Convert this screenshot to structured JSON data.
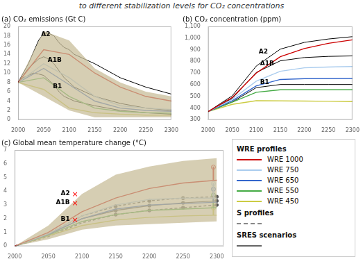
{
  "title": "to different stabilization levels for CO₂ concentrations",
  "chart_data": [
    {
      "type": "line",
      "title": "(a) CO₂ emissions (Gt C)",
      "xlim": [
        2000,
        2300
      ],
      "xticks": [
        2000,
        2050,
        2100,
        2150,
        2200,
        2250,
        2300
      ],
      "ylim": [
        0,
        20
      ],
      "yticks": [
        0,
        2,
        4,
        6,
        8,
        10,
        12,
        14,
        16,
        18,
        20
      ],
      "grid": false,
      "band": {
        "x": [
          2000,
          2050,
          2100,
          2150,
          2200,
          2250,
          2300
        ],
        "lower": [
          8.0,
          5.0,
          2.0,
          0.5,
          0.5,
          0.5,
          0.5
        ],
        "upper": [
          8.0,
          19.0,
          17.0,
          11.0,
          8.0,
          6.0,
          5.0
        ],
        "color": "#c8be9a"
      },
      "series": [
        {
          "name": "WRE 1000",
          "color": "#cc0000",
          "x": [
            2000,
            2050,
            2100,
            2150,
            2200,
            2250,
            2300
          ],
          "values": [
            8.0,
            15.0,
            14.0,
            10.0,
            7.0,
            5.0,
            4.0
          ]
        },
        {
          "name": "WRE 750",
          "color": "#aaccee",
          "x": [
            2000,
            2050,
            2100,
            2150,
            2200,
            2250,
            2300
          ],
          "values": [
            8.0,
            12.0,
            9.0,
            5.0,
            3.0,
            2.5,
            2.2
          ]
        },
        {
          "name": "WRE 650",
          "color": "#3366cc",
          "x": [
            2000,
            2050,
            2100,
            2150,
            2200,
            2250,
            2300
          ],
          "values": [
            8.0,
            11.0,
            7.5,
            4.0,
            2.5,
            2.0,
            1.8
          ]
        },
        {
          "name": "WRE 550",
          "color": "#44aa44",
          "x": [
            2000,
            2050,
            2100,
            2150,
            2200,
            2250,
            2300
          ],
          "values": [
            8.0,
            9.0,
            5.0,
            2.5,
            1.8,
            1.5,
            1.4
          ]
        },
        {
          "name": "WRE 450",
          "color": "#cccc44",
          "x": [
            2000,
            2050,
            2100,
            2150,
            2200,
            2250,
            2300
          ],
          "values": [
            8.0,
            6.5,
            2.5,
            1.5,
            1.2,
            1.0,
            1.0
          ]
        },
        {
          "name": "A2",
          "color": "#000000",
          "x": [
            2000,
            2010,
            2020,
            2030,
            2040,
            2050,
            2060,
            2070,
            2080,
            2090,
            2100,
            2110,
            2150,
            2200,
            2250,
            2300
          ],
          "values": [
            8.0,
            10.0,
            12.0,
            14.5,
            17.0,
            18.5,
            18.5,
            18.0,
            16.5,
            15.5,
            15.0,
            14.0,
            12.0,
            9.0,
            7.0,
            5.5
          ]
        },
        {
          "name": "A1B",
          "color": "#000000",
          "x": [
            2000,
            2010,
            2020,
            2030,
            2040,
            2050,
            2060,
            2070,
            2080,
            2090,
            2100,
            2110,
            2150,
            2200,
            2250,
            2300
          ],
          "values": [
            8.0,
            9.5,
            11.0,
            12.0,
            13.0,
            13.5,
            13.0,
            12.0,
            10.5,
            9.0,
            8.0,
            7.0,
            5.0,
            3.5,
            2.5,
            2.0
          ]
        },
        {
          "name": "B1",
          "color": "#000000",
          "x": [
            2000,
            2010,
            2020,
            2030,
            2040,
            2050,
            2060,
            2070,
            2080,
            2090,
            2100,
            2110,
            2150,
            2200,
            2250,
            2300
          ],
          "values": [
            8.0,
            9.0,
            9.5,
            10.0,
            9.8,
            9.5,
            8.5,
            7.5,
            6.0,
            5.0,
            4.5,
            4.0,
            3.0,
            2.0,
            1.5,
            1.2
          ]
        }
      ],
      "annotations": [
        {
          "text": "A2",
          "x": 2045,
          "y": 19.0
        },
        {
          "text": "A1B",
          "x": 2058,
          "y": 13.5
        },
        {
          "text": "B1",
          "x": 2068,
          "y": 7.8
        }
      ]
    },
    {
      "type": "line",
      "title": "(b) CO₂ concentration (ppm)",
      "xlim": [
        2000,
        2300
      ],
      "xticks": [
        2000,
        2050,
        2100,
        2150,
        2200,
        2250,
        2300
      ],
      "ylim": [
        300,
        1100
      ],
      "yticks": [
        300,
        400,
        500,
        600,
        700,
        800,
        900,
        {
          "value": 1000,
          "label": "1,000"
        },
        {
          "value": 1100,
          "label": "1,100"
        }
      ],
      "grid": false,
      "series": [
        {
          "name": "WRE 1000",
          "color": "#cc0000",
          "x": [
            2000,
            2050,
            2100,
            2150,
            2200,
            2250,
            2300
          ],
          "values": [
            370,
            490,
            700,
            840,
            910,
            955,
            985
          ]
        },
        {
          "name": "WRE 750",
          "color": "#aaccee",
          "x": [
            2000,
            2050,
            2100,
            2150,
            2200,
            2250,
            2300
          ],
          "values": [
            370,
            475,
            630,
            715,
            745,
            752,
            756
          ]
        },
        {
          "name": "WRE 650",
          "color": "#3366cc",
          "x": [
            2000,
            2050,
            2100,
            2150,
            2200,
            2250,
            2300
          ],
          "values": [
            370,
            462,
            590,
            645,
            652,
            654,
            655
          ]
        },
        {
          "name": "WRE 550",
          "color": "#44aa44",
          "x": [
            2000,
            2050,
            2100,
            2150,
            2200,
            2250,
            2300
          ],
          "values": [
            370,
            450,
            535,
            557,
            557,
            557,
            557
          ]
        },
        {
          "name": "WRE 450",
          "color": "#cccc44",
          "x": [
            2000,
            2050,
            2100,
            2150,
            2200,
            2250,
            2300
          ],
          "values": [
            370,
            432,
            463,
            462,
            460,
            458,
            456
          ]
        },
        {
          "name": "A2",
          "color": "#000000",
          "x": [
            2000,
            2050,
            2100,
            2150,
            2200,
            2250,
            2300
          ],
          "values": [
            370,
            505,
            760,
            905,
            963,
            992,
            1012
          ]
        },
        {
          "name": "A1B",
          "color": "#000000",
          "x": [
            2000,
            2050,
            2100,
            2150,
            2200,
            2250,
            2300
          ],
          "values": [
            370,
            482,
            705,
            805,
            833,
            843,
            847
          ]
        },
        {
          "name": "B1",
          "color": "#000000",
          "x": [
            2000,
            2050,
            2100,
            2150,
            2200,
            2250,
            2300
          ],
          "values": [
            370,
            452,
            575,
            602,
            602,
            602,
            602
          ]
        }
      ],
      "annotations": [
        {
          "text": "A2",
          "x": 2105,
          "y": 870
        },
        {
          "text": "A1B",
          "x": 2108,
          "y": 765
        },
        {
          "text": "B1",
          "x": 2108,
          "y": 605
        }
      ]
    },
    {
      "type": "line",
      "title": "(c) Global mean temperature change (°C)",
      "xlim": [
        2000,
        2310
      ],
      "xticks": [
        2000,
        2050,
        2100,
        2150,
        2200,
        2250,
        2300
      ],
      "ylim": [
        0,
        7
      ],
      "yticks": [
        0,
        1,
        2,
        3,
        4,
        5,
        6,
        7
      ],
      "grid": false,
      "band": {
        "x": [
          2000,
          2050,
          2100,
          2150,
          2200,
          2250,
          2300
        ],
        "lower": [
          0.0,
          0.5,
          1.2,
          1.5,
          1.6,
          1.7,
          1.8
        ],
        "upper": [
          0.0,
          1.5,
          3.8,
          5.2,
          5.8,
          6.2,
          6.4
        ],
        "color": "#c8be9a"
      },
      "series": [
        {
          "name": "WRE 1000",
          "color": "#cc0000",
          "x": [
            2000,
            2050,
            2100,
            2150,
            2200,
            2250,
            2300
          ],
          "values": [
            0.0,
            1.0,
            2.5,
            3.5,
            4.2,
            4.6,
            4.8
          ]
        },
        {
          "name": "WRE 750",
          "color": "#aaccee",
          "x": [
            2000,
            2050,
            2100,
            2150,
            2200,
            2250,
            2300
          ],
          "values": [
            0.0,
            0.9,
            2.2,
            3.0,
            3.4,
            3.5,
            3.5
          ]
        },
        {
          "name": "WRE 650",
          "color": "#3366cc",
          "x": [
            2000,
            2050,
            2100,
            2150,
            2200,
            2250,
            2300
          ],
          "values": [
            0.0,
            0.85,
            2.0,
            2.7,
            3.0,
            3.1,
            3.2
          ]
        },
        {
          "name": "WRE 550",
          "color": "#44aa44",
          "x": [
            2000,
            2050,
            2100,
            2150,
            2200,
            2250,
            2300
          ],
          "values": [
            0.0,
            0.8,
            1.8,
            2.3,
            2.6,
            2.7,
            2.8
          ]
        },
        {
          "name": "WRE 450",
          "color": "#cccc44",
          "x": [
            2000,
            2050,
            2100,
            2150,
            2200,
            2250,
            2300
          ],
          "values": [
            0.0,
            0.75,
            1.5,
            1.9,
            2.1,
            2.2,
            2.25
          ]
        },
        {
          "name": "S profiles",
          "color": "#555555",
          "line_style": "dashed",
          "marker": "dot",
          "marker_x": [
            2150,
            2200,
            2250,
            2300
          ],
          "x": [
            2000,
            2050,
            2100,
            2150,
            2200,
            2250,
            2300
          ],
          "values": [
            0.0,
            0.9,
            2.2,
            2.9,
            3.3,
            3.5,
            3.6
          ]
        },
        {
          "name": "S profiles",
          "color": "#555555",
          "line_style": "dashed",
          "marker": "dot",
          "marker_x": [
            2150,
            2200,
            2250,
            2300
          ],
          "x": [
            2000,
            2050,
            2100,
            2150,
            2200,
            2250,
            2300
          ],
          "values": [
            0.0,
            0.7,
            1.7,
            2.3,
            2.6,
            2.8,
            3.0
          ]
        },
        {
          "name": "SRES scenarios",
          "color": "#555555",
          "line_style": "solid",
          "marker": "dot",
          "marker_x": [
            2150,
            2200,
            2250,
            2300
          ],
          "x": [
            2000,
            2050,
            2100,
            2150,
            2200,
            2250,
            2300
          ],
          "values": [
            0.0,
            0.85,
            2.0,
            2.6,
            2.95,
            3.15,
            3.3
          ]
        }
      ],
      "annotations": [
        {
          "text": "A2",
          "x": 2082,
          "y": 3.85
        },
        {
          "text": "×",
          "x": 2085,
          "y": 3.77,
          "color": "#ff0000"
        },
        {
          "text": "A1B",
          "x": 2082,
          "y": 3.18
        },
        {
          "text": "×",
          "x": 2085,
          "y": 3.1,
          "color": "#ff0000"
        },
        {
          "text": "B1",
          "x": 2082,
          "y": 1.98
        },
        {
          "text": "×",
          "x": 2085,
          "y": 1.9,
          "color": "#ff0000"
        }
      ],
      "range_bars": [
        {
          "x": 2295,
          "color": "#cc0000",
          "ymin": 4.8,
          "ymax": 5.8,
          "marker_y": 5.75
        },
        {
          "x": 2295,
          "color": "#aaccee",
          "ymin": 3.5,
          "ymax": 4.6,
          "marker_y": 4.55
        },
        {
          "x": 2295,
          "color": "#3366cc",
          "ymin": 3.2,
          "ymax": 4.3,
          "marker_y": 4.15
        },
        {
          "x": 2295,
          "color": "#44aa44",
          "ymin": 2.8,
          "ymax": 3.8,
          "marker_y": 3.72
        },
        {
          "x": 2295,
          "color": "#cccc44",
          "ymin": 2.25,
          "ymax": 3.4,
          "marker_y": 2.78
        }
      ]
    }
  ],
  "legend_groups": [
    {
      "title": "WRE profiles",
      "entries": [
        {
          "label": "WRE 1000",
          "color": "#cc0000"
        },
        {
          "label": "WRE 750",
          "color": "#aaccee"
        },
        {
          "label": "WRE 650",
          "color": "#3366cc"
        },
        {
          "label": "WRE 550",
          "color": "#44aa44"
        },
        {
          "label": "WRE 450",
          "color": "#cccc44"
        }
      ]
    },
    {
      "title": "S profiles",
      "color": "#888888",
      "line_style": "dashed"
    },
    {
      "title": "SRES scenarios",
      "color": "#666666",
      "line_style": "solid"
    }
  ]
}
